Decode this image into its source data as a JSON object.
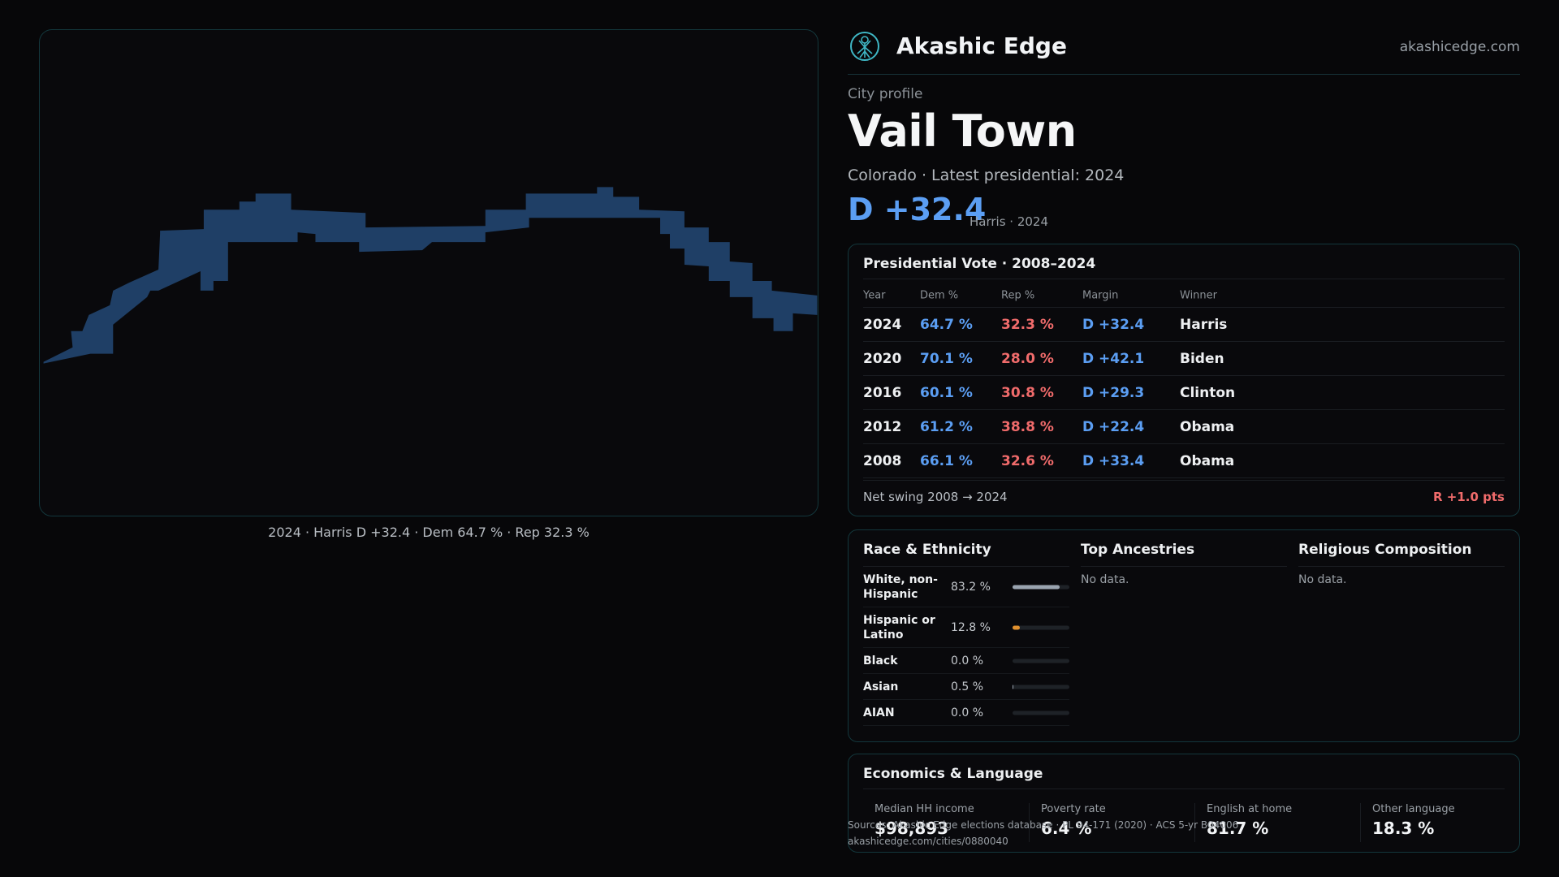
{
  "brand": {
    "name": "Akashic Edge",
    "url": "akashicedge.com",
    "logo_icon": "tree-of-life-icon",
    "accent": "#3fb6c4"
  },
  "profile": {
    "label": "City profile",
    "city": "Vail Town",
    "subtitle": "Colorado · Latest presidential: 2024",
    "margin": "D +32.4",
    "margin_note": "Harris · 2024"
  },
  "map": {
    "caption": "2024 · Harris D +32.4 · Dem 64.7 % · Rep 32.3 %",
    "fill_color": "#1f3f66"
  },
  "presidential": {
    "title": "Presidential Vote · 2008–2024",
    "columns": [
      "Year",
      "Dem %",
      "Rep %",
      "Margin",
      "Winner"
    ],
    "rows": [
      {
        "year": "2024",
        "dem": "64.7 %",
        "rep": "32.3 %",
        "margin": "D +32.4",
        "winner": "Harris"
      },
      {
        "year": "2020",
        "dem": "70.1 %",
        "rep": "28.0 %",
        "margin": "D +42.1",
        "winner": "Biden"
      },
      {
        "year": "2016",
        "dem": "60.1 %",
        "rep": "30.8 %",
        "margin": "D +29.3",
        "winner": "Clinton"
      },
      {
        "year": "2012",
        "dem": "61.2 %",
        "rep": "38.8 %",
        "margin": "D +22.4",
        "winner": "Obama"
      },
      {
        "year": "2008",
        "dem": "66.1 %",
        "rep": "32.6 %",
        "margin": "D +33.4",
        "winner": "Obama"
      }
    ],
    "swing_label": "Net swing 2008 → 2024",
    "swing_value": "R +1.0 pts"
  },
  "race": {
    "title": "Race & Ethnicity",
    "rows": [
      {
        "label": "White, non-Hispanic",
        "value": "83.2 %",
        "fraction": 0.832,
        "color": "#9aa4b0"
      },
      {
        "label": "Hispanic or Latino",
        "value": "12.8 %",
        "fraction": 0.128,
        "color": "#e0902e"
      },
      {
        "label": "Black",
        "value": "0.0 %",
        "fraction": 0.0,
        "color": "#9aa4b0"
      },
      {
        "label": "Asian",
        "value": "0.5 %",
        "fraction": 0.005,
        "color": "#9aa4b0"
      },
      {
        "label": "AIAN",
        "value": "0.0 %",
        "fraction": 0.0,
        "color": "#9aa4b0"
      }
    ]
  },
  "ancestries": {
    "title": "Top Ancestries",
    "empty": "No data."
  },
  "religion": {
    "title": "Religious Composition",
    "empty": "No data."
  },
  "economics": {
    "title": "Economics & Language",
    "stats": [
      {
        "label": "Median HH income",
        "value": "$98,893"
      },
      {
        "label": "Poverty rate",
        "value": "6.4 %"
      },
      {
        "label": "English at home",
        "value": "81.7 %"
      },
      {
        "label": "Other language",
        "value": "18.3 %"
      }
    ]
  },
  "source": {
    "line1": "Sources: Akashic Edge elections database · PL 94-171 (2020) · ACS 5-yr B04006",
    "line2": "akashicedge.com/cities/0880040"
  }
}
